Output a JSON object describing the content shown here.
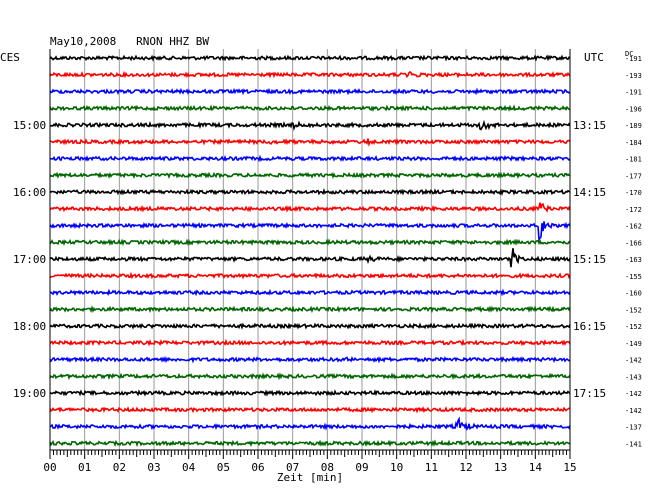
{
  "chart_data": {
    "type": "line",
    "title": "May10,2008   RNON HHZ BW",
    "left_timezone": "CES",
    "right_timezone": "UTC",
    "offset_header": "DC",
    "xlabel": "Zeit [min]",
    "xlim": [
      0,
      15
    ],
    "x_ticks": [
      "00",
      "01",
      "02",
      "03",
      "04",
      "05",
      "06",
      "07",
      "08",
      "09",
      "10",
      "11",
      "12",
      "13",
      "14",
      "15"
    ],
    "trace_count": 24,
    "trace_colors": [
      "#000000",
      "#ff0000",
      "#0000ff",
      "#006600"
    ],
    "left_hour_labels": [
      {
        "trace": 4,
        "label": "15:00"
      },
      {
        "trace": 8,
        "label": "16:00"
      },
      {
        "trace": 12,
        "label": "17:00"
      },
      {
        "trace": 16,
        "label": "18:00"
      },
      {
        "trace": 20,
        "label": "19:00"
      }
    ],
    "right_hour_labels": [
      {
        "trace": 4,
        "label": "13:15"
      },
      {
        "trace": 8,
        "label": "14:15"
      },
      {
        "trace": 12,
        "label": "15:15"
      },
      {
        "trace": 16,
        "label": "16:15"
      },
      {
        "trace": 20,
        "label": "17:15"
      }
    ],
    "dc_offsets": [
      "-191",
      "-193",
      "-191",
      "-196",
      "-189",
      "-184",
      "-181",
      "-177",
      "-170",
      "-172",
      "-162",
      "-166",
      "-163",
      "-155",
      "-160",
      "-152",
      "-152",
      "-149",
      "-142",
      "-143",
      "-142",
      "-142",
      "-137",
      "-141"
    ],
    "events": [
      {
        "trace": 1,
        "minute": 10.3,
        "amplitude": 5
      },
      {
        "trace": 4,
        "minute": 12.4,
        "amplitude": 7
      },
      {
        "trace": 4,
        "minute": 7.0,
        "amplitude": 3
      },
      {
        "trace": 5,
        "minute": 6.3,
        "amplitude": 3
      },
      {
        "trace": 5,
        "minute": 9.1,
        "amplitude": 3
      },
      {
        "trace": 9,
        "minute": 14.1,
        "amplitude": 8
      },
      {
        "trace": 10,
        "minute": 14.1,
        "amplitude": 16
      },
      {
        "trace": 12,
        "minute": 13.3,
        "amplitude": 14
      },
      {
        "trace": 12,
        "minute": 9.2,
        "amplitude": 3
      },
      {
        "trace": 18,
        "minute": 8.4,
        "amplitude": 3
      },
      {
        "trace": 22,
        "minute": 11.75,
        "amplitude": 10
      }
    ]
  }
}
